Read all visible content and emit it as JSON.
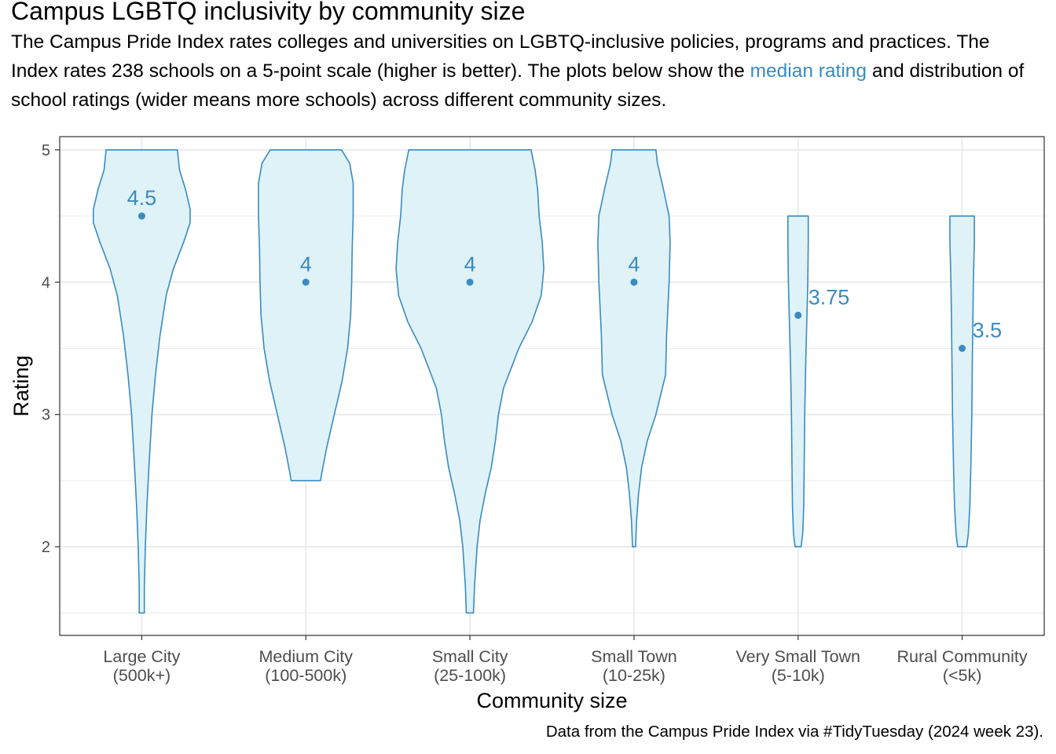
{
  "title": "Campus LGBTQ inclusivity by community size",
  "subtitle": {
    "before": "The Campus Pride Index rates colleges and universities on LGBTQ-inclusive policies, programs and practices. The Index rates 238 schools on a 5-point scale (higher is better). The plots below show the ",
    "highlight": "median rating",
    "after": " and distribution of school ratings (wider means more schools) across different community sizes."
  },
  "caption": "Data from the Campus Pride Index via #TidyTuesday (2024 week 23).",
  "colors": {
    "violin_fill": "#DFF2F8",
    "violin_stroke": "#3A8BC0",
    "median": "#3A8BC0",
    "grid": "#EBEBEB",
    "axis_text": "#4D4D4D"
  },
  "chart_data": {
    "type": "violin",
    "xlabel": "Community size",
    "ylabel": "Rating",
    "ylim": [
      1.33,
      5.1
    ],
    "yticks": [
      2,
      3,
      4,
      5
    ],
    "grid": true,
    "categories": [
      {
        "label_line1": "Large City",
        "label_line2": "(500k+)",
        "median": 4.5,
        "median_label": "4.5",
        "label_position": "above",
        "profile": [
          [
            1.5,
            0.05
          ],
          [
            1.7,
            0.05
          ],
          [
            2.0,
            0.07
          ],
          [
            2.3,
            0.1
          ],
          [
            2.6,
            0.14
          ],
          [
            3.0,
            0.2
          ],
          [
            3.3,
            0.27
          ],
          [
            3.6,
            0.36
          ],
          [
            3.9,
            0.48
          ],
          [
            4.1,
            0.62
          ],
          [
            4.3,
            0.82
          ],
          [
            4.45,
            0.95
          ],
          [
            4.55,
            0.95
          ],
          [
            4.7,
            0.86
          ],
          [
            4.85,
            0.74
          ],
          [
            5.0,
            0.7
          ]
        ]
      },
      {
        "label_line1": "Medium City",
        "label_line2": "(100-500k)",
        "median": 4,
        "median_label": "4",
        "label_position": "above",
        "profile": [
          [
            2.5,
            0.29
          ],
          [
            2.55,
            0.31
          ],
          [
            2.75,
            0.41
          ],
          [
            3.0,
            0.56
          ],
          [
            3.25,
            0.71
          ],
          [
            3.5,
            0.82
          ],
          [
            3.75,
            0.88
          ],
          [
            4.0,
            0.9
          ],
          [
            4.25,
            0.91
          ],
          [
            4.5,
            0.93
          ],
          [
            4.75,
            0.93
          ],
          [
            4.9,
            0.86
          ],
          [
            5.0,
            0.7
          ]
        ]
      },
      {
        "label_line1": "Small City",
        "label_line2": "(25-100k)",
        "median": 4,
        "median_label": "4",
        "label_position": "above",
        "profile": [
          [
            1.5,
            0.07
          ],
          [
            1.7,
            0.09
          ],
          [
            2.0,
            0.14
          ],
          [
            2.2,
            0.2
          ],
          [
            2.4,
            0.3
          ],
          [
            2.6,
            0.42
          ],
          [
            2.8,
            0.5
          ],
          [
            3.0,
            0.56
          ],
          [
            3.2,
            0.66
          ],
          [
            3.5,
            0.96
          ],
          [
            3.7,
            1.22
          ],
          [
            3.9,
            1.4
          ],
          [
            4.1,
            1.45
          ],
          [
            4.3,
            1.42
          ],
          [
            4.5,
            1.36
          ],
          [
            4.7,
            1.33
          ],
          [
            4.85,
            1.28
          ],
          [
            5.0,
            1.2
          ]
        ]
      },
      {
        "label_line1": "Small Town",
        "label_line2": "(10-25k)",
        "median": 4,
        "median_label": "4",
        "label_position": "above",
        "profile": [
          [
            2.0,
            0.03
          ],
          [
            2.2,
            0.05
          ],
          [
            2.4,
            0.09
          ],
          [
            2.6,
            0.15
          ],
          [
            2.8,
            0.26
          ],
          [
            3.0,
            0.43
          ],
          [
            3.3,
            0.62
          ],
          [
            3.6,
            0.64
          ],
          [
            4.0,
            0.69
          ],
          [
            4.3,
            0.71
          ],
          [
            4.5,
            0.69
          ],
          [
            4.7,
            0.58
          ],
          [
            4.9,
            0.46
          ],
          [
            5.0,
            0.43
          ]
        ]
      },
      {
        "label_line1": "Very Small Town",
        "label_line2": "(5-10k)",
        "median": 3.75,
        "median_label": "3.75",
        "label_position": "right",
        "profile": [
          [
            2.0,
            0.06
          ],
          [
            2.1,
            0.09
          ],
          [
            2.3,
            0.11
          ],
          [
            2.6,
            0.12
          ],
          [
            3.0,
            0.13
          ],
          [
            3.4,
            0.15
          ],
          [
            3.7,
            0.17
          ],
          [
            4.0,
            0.19
          ],
          [
            4.3,
            0.2
          ],
          [
            4.5,
            0.2
          ]
        ]
      },
      {
        "label_line1": "Rural Community",
        "label_line2": "(<5k)",
        "median": 3.5,
        "median_label": "3.5",
        "label_position": "right",
        "profile": [
          [
            2.0,
            0.09
          ],
          [
            2.1,
            0.12
          ],
          [
            2.3,
            0.15
          ],
          [
            2.6,
            0.17
          ],
          [
            3.0,
            0.19
          ],
          [
            3.4,
            0.2
          ],
          [
            3.7,
            0.21
          ],
          [
            4.0,
            0.22
          ],
          [
            4.3,
            0.24
          ],
          [
            4.5,
            0.24
          ]
        ]
      }
    ]
  }
}
